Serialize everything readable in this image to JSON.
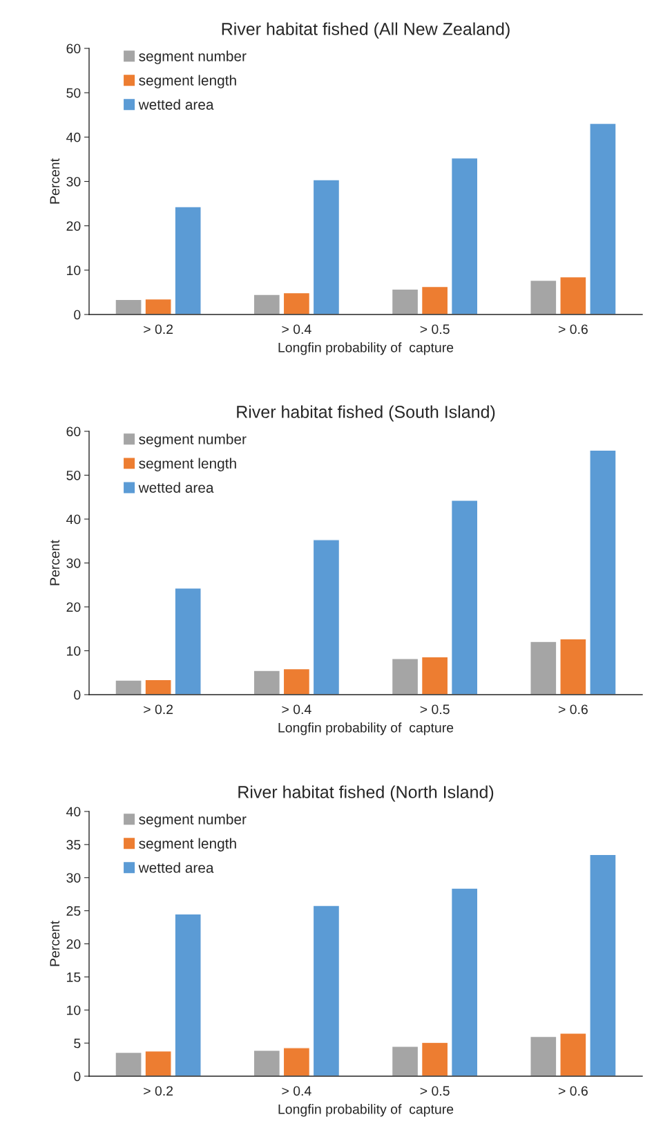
{
  "chart_data": [
    {
      "type": "bar",
      "title": "River habitat fished (All New Zealand)",
      "xlabel": "Longfin probability of  capture",
      "ylabel": "Percent",
      "categories": [
        "> 0.2",
        "> 0.4",
        "> 0.5",
        "> 0.6"
      ],
      "series": [
        {
          "name": "segment number",
          "color": "#a5a5a5",
          "values": [
            3.4,
            4.5,
            5.7,
            7.7
          ]
        },
        {
          "name": "segment length",
          "color": "#ed7d31",
          "values": [
            3.5,
            4.9,
            6.3,
            8.5
          ]
        },
        {
          "name": "wetted area",
          "color": "#5b9bd5",
          "values": [
            24.3,
            30.4,
            35.3,
            43.1
          ]
        }
      ],
      "ylim": [
        0,
        60
      ],
      "yticks": [
        0,
        10,
        20,
        30,
        40,
        50,
        60
      ],
      "legend": "top left",
      "grid": false
    },
    {
      "type": "bar",
      "title": "River habitat fished (South Island)",
      "xlabel": "Longfin probability of  capture",
      "ylabel": "Percent",
      "categories": [
        "> 0.2",
        "> 0.4",
        "> 0.5",
        "> 0.6"
      ],
      "series": [
        {
          "name": "segment number",
          "color": "#a5a5a5",
          "values": [
            3.3,
            5.5,
            8.2,
            12.1
          ]
        },
        {
          "name": "segment length",
          "color": "#ed7d31",
          "values": [
            3.4,
            5.9,
            8.6,
            12.7
          ]
        },
        {
          "name": "wetted area",
          "color": "#5b9bd5",
          "values": [
            24.3,
            35.3,
            44.3,
            55.7
          ]
        }
      ],
      "ylim": [
        0,
        60
      ],
      "yticks": [
        0,
        10,
        20,
        30,
        40,
        50,
        60
      ],
      "legend": "top left",
      "grid": false
    },
    {
      "type": "bar",
      "title": "River habitat fished (North Island)",
      "xlabel": "Longfin probability of  capture",
      "ylabel": "Percent",
      "categories": [
        "> 0.2",
        "> 0.4",
        "> 0.5",
        "> 0.6"
      ],
      "series": [
        {
          "name": "segment number",
          "color": "#a5a5a5",
          "values": [
            3.6,
            3.9,
            4.5,
            6.0
          ]
        },
        {
          "name": "segment length",
          "color": "#ed7d31",
          "values": [
            3.8,
            4.3,
            5.1,
            6.5
          ]
        },
        {
          "name": "wetted area",
          "color": "#5b9bd5",
          "values": [
            24.5,
            25.8,
            28.4,
            33.5
          ]
        }
      ],
      "ylim": [
        0,
        40
      ],
      "yticks": [
        0,
        5,
        10,
        15,
        20,
        25,
        30,
        35,
        40
      ],
      "legend": "top left",
      "grid": false
    }
  ]
}
